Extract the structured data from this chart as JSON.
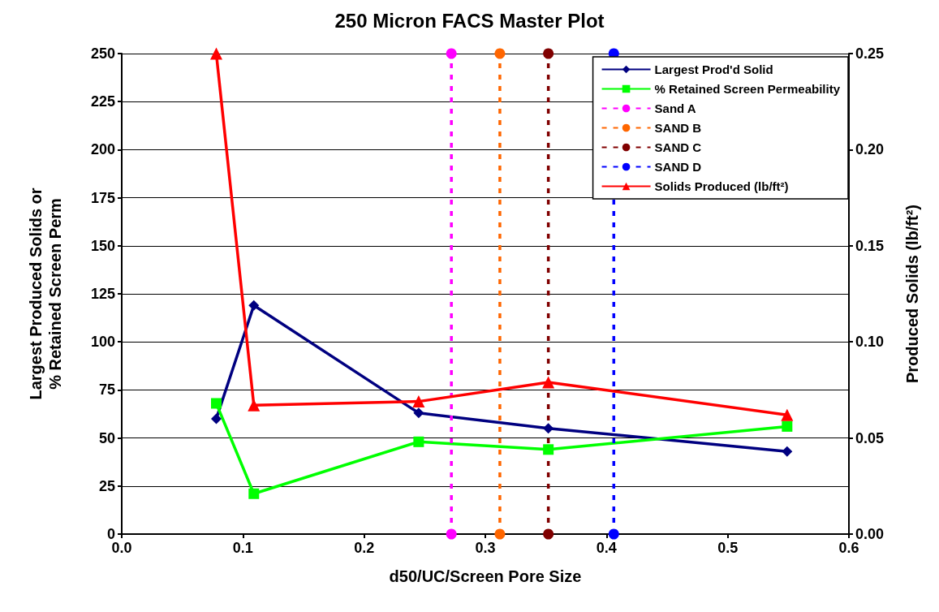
{
  "chart_data": {
    "type": "line",
    "title": "250 Micron FACS Master Plot",
    "xlabel": "d50/UC/Screen Pore Size",
    "ylabel": "Largest Produced Solids or\n% Retained Screen Perm",
    "y2label": "Produced Solids (lb/ft²)",
    "x": [
      0.078,
      0.109,
      0.245,
      0.352,
      0.549
    ],
    "series": [
      {
        "name": "Largest Prod'd Solid",
        "color": "#000080",
        "marker": "diamond",
        "values": [
          60,
          119,
          63,
          55,
          43
        ]
      },
      {
        "name": "% Retained Screen Permeability",
        "color": "#00ff00",
        "marker": "square",
        "values": [
          68,
          21,
          48,
          44,
          56
        ]
      },
      {
        "name": "Sand A",
        "color": "#ff00ff",
        "marker": "circle",
        "line_style": "dashed",
        "x": [
          0.272,
          0.272
        ],
        "values": [
          0,
          250
        ]
      },
      {
        "name": "SAND B",
        "color": "#ff6600",
        "marker": "circle",
        "line_style": "dashed",
        "x": [
          0.312,
          0.312
        ],
        "values": [
          0,
          250
        ]
      },
      {
        "name": "SAND C",
        "color": "#800000",
        "marker": "circle",
        "line_style": "dashed",
        "x": [
          0.352,
          0.352
        ],
        "values": [
          0,
          250
        ]
      },
      {
        "name": "SAND D",
        "color": "#0000ff",
        "marker": "circle",
        "line_style": "dashed",
        "x": [
          0.406,
          0.406
        ],
        "values": [
          0,
          250
        ]
      },
      {
        "name": "Solids Produced (lb/ft²)",
        "color": "#ff0000",
        "marker": "triangle",
        "axis": "y2",
        "values": [
          0.25,
          0.067,
          0.069,
          0.079,
          0.062
        ]
      }
    ],
    "xlim": [
      0,
      0.6
    ],
    "xticks": [
      {
        "value": 0,
        "label": "0.0"
      },
      0.1,
      0.2,
      0.3,
      0.4,
      0.5,
      0.6
    ],
    "ylim": [
      0,
      250
    ],
    "yticks": [
      0,
      25,
      50,
      75,
      100,
      125,
      150,
      175,
      200,
      225,
      250
    ],
    "y2lim": [
      0,
      0.25
    ],
    "y2ticks": [
      {
        "value": 0,
        "label": "0.00"
      },
      0.05,
      {
        "value": 0.1,
        "label": "0.10"
      },
      0.15,
      {
        "value": 0.2,
        "label": "0.20"
      },
      0.25
    ],
    "grid": "y",
    "legend": "top right",
    "line_style": "solid"
  }
}
